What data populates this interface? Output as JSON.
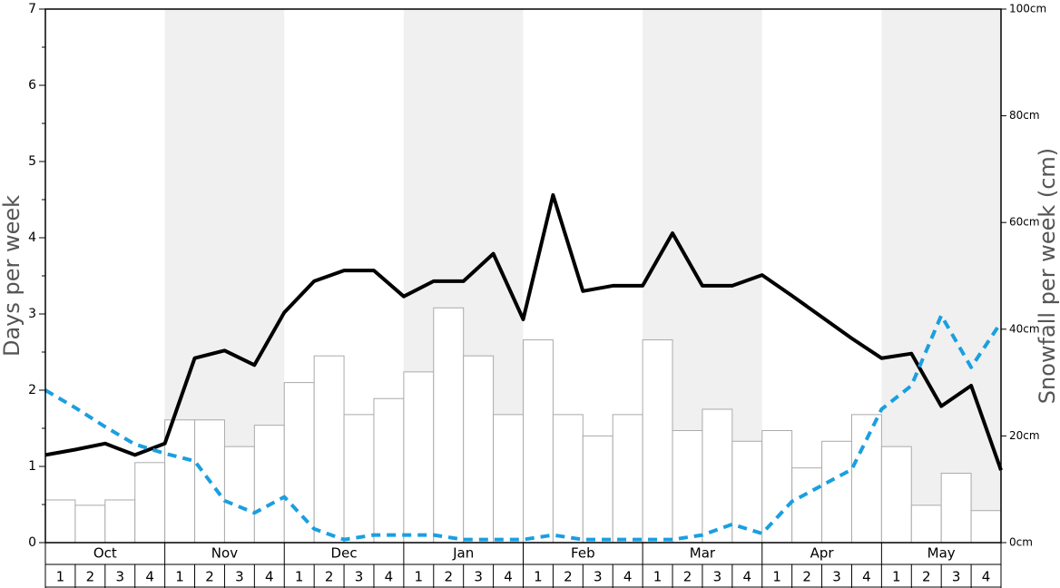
{
  "chart_data": {
    "type": "bar-line",
    "ylabel": "Days per week",
    "y2label": "Snowfall per week (cm)",
    "months": [
      "Oct",
      "Nov",
      "Dec",
      "Jan",
      "Feb",
      "Mar",
      "Apr",
      "May"
    ],
    "week_labels": [
      "1",
      "2",
      "3",
      "4"
    ],
    "shaded_months": [
      1,
      3,
      5,
      7
    ],
    "ylim": [
      0,
      7
    ],
    "yticks": [
      0,
      1,
      2,
      3,
      4,
      5,
      6,
      7
    ],
    "yminorticks": [
      0.5,
      1.5,
      2.5,
      3.5,
      4.5,
      5.5,
      6.5
    ],
    "y2lim": [
      0,
      100
    ],
    "y2ticks": [
      {
        "value": 0,
        "label": "0cm"
      },
      {
        "value": 20,
        "label": "20cm"
      },
      {
        "value": 40,
        "label": "40cm"
      },
      {
        "value": 60,
        "label": "60cm"
      },
      {
        "value": 80,
        "label": "80cm"
      },
      {
        "value": 100,
        "label": "100cm"
      }
    ],
    "bars": {
      "axis": "y2",
      "color": "#ffffff",
      "stroke": "#aaaaaa",
      "values": [
        8,
        7,
        8,
        15,
        23,
        23,
        18,
        22,
        30,
        35,
        24,
        27,
        32,
        44,
        35,
        24,
        38,
        24,
        20,
        24,
        38,
        21,
        25,
        19,
        21,
        14,
        19,
        24,
        18,
        7,
        13,
        6
      ]
    },
    "series": [
      {
        "color": "#000000",
        "dash": false,
        "values": [
          1.15,
          1.22,
          1.3,
          1.15,
          1.3,
          2.42,
          2.52,
          2.33,
          3.02,
          3.43,
          3.57,
          3.57,
          3.23,
          3.43,
          3.43,
          3.79,
          2.93,
          4.56,
          3.3,
          3.37,
          3.37,
          4.06,
          3.37,
          3.37,
          3.51,
          3.24,
          2.96,
          2.68,
          2.42,
          2.48,
          1.79,
          2.06,
          0.95
        ]
      },
      {
        "color": "#1a9fe0",
        "dash": true,
        "values": [
          2.0,
          1.77,
          1.52,
          1.29,
          1.17,
          1.07,
          0.55,
          0.39,
          0.6,
          0.18,
          0.04,
          0.1,
          0.1,
          0.1,
          0.04,
          0.04,
          0.04,
          0.1,
          0.04,
          0.04,
          0.04,
          0.04,
          0.1,
          0.24,
          0.12,
          0.54,
          0.75,
          0.96,
          1.75,
          2.06,
          2.98,
          2.3,
          2.89
        ]
      }
    ]
  }
}
